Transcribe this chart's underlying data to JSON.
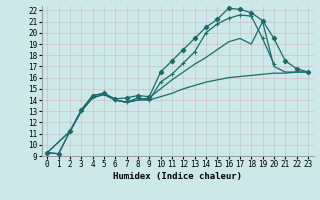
{
  "xlabel": "Humidex (Indice chaleur)",
  "background_color": "#cce8e8",
  "grid_color": "#aacccc",
  "line_color": "#1a6b6b",
  "xlim": [
    -0.5,
    23.5
  ],
  "ylim": [
    9,
    22.4
  ],
  "xticks": [
    0,
    1,
    2,
    3,
    4,
    5,
    6,
    7,
    8,
    9,
    10,
    11,
    12,
    13,
    14,
    15,
    16,
    17,
    18,
    19,
    20,
    21,
    22,
    23
  ],
  "yticks": [
    9,
    10,
    11,
    12,
    13,
    14,
    15,
    16,
    17,
    18,
    19,
    20,
    21,
    22
  ],
  "line1_x": [
    0,
    1,
    2,
    3,
    4,
    5,
    6,
    7,
    8,
    9,
    10,
    11,
    12,
    13,
    14,
    15,
    16,
    17,
    18,
    19,
    20,
    21,
    22,
    23
  ],
  "line1_y": [
    9.3,
    9.2,
    11.2,
    13.1,
    14.4,
    14.6,
    14.1,
    14.2,
    14.4,
    14.3,
    16.5,
    17.5,
    18.5,
    19.5,
    20.5,
    21.2,
    22.2,
    22.1,
    21.8,
    21.1,
    19.5,
    17.5,
    16.8,
    16.5
  ],
  "line2_x": [
    0,
    1,
    2,
    3,
    4,
    5,
    6,
    7,
    8,
    9,
    10,
    11,
    12,
    13,
    14,
    15,
    16,
    17,
    18,
    19,
    20
  ],
  "line2_y": [
    9.3,
    9.2,
    11.2,
    13.1,
    14.4,
    14.6,
    14.0,
    13.8,
    14.2,
    14.0,
    15.6,
    16.3,
    17.3,
    18.3,
    20.0,
    20.8,
    21.3,
    21.6,
    21.5,
    19.5,
    17.2
  ],
  "line3_x": [
    0,
    2,
    3,
    4,
    5,
    6,
    7,
    8,
    9,
    10,
    11,
    12,
    13,
    14,
    15,
    16,
    17,
    18,
    19,
    20,
    21,
    22,
    23
  ],
  "line3_y": [
    9.3,
    11.2,
    13.0,
    14.2,
    14.5,
    14.0,
    13.8,
    14.0,
    14.0,
    14.3,
    14.6,
    15.0,
    15.3,
    15.6,
    15.8,
    16.0,
    16.1,
    16.2,
    16.3,
    16.4,
    16.4,
    16.5,
    16.5
  ],
  "line4_x": [
    0,
    2,
    3,
    4,
    5,
    6,
    7,
    8,
    9,
    10,
    11,
    12,
    13,
    14,
    15,
    16,
    17,
    18,
    19,
    20,
    21,
    22,
    23
  ],
  "line4_y": [
    9.3,
    11.2,
    13.0,
    14.2,
    14.5,
    14.0,
    13.8,
    14.0,
    14.2,
    15.0,
    15.8,
    16.5,
    17.2,
    17.8,
    18.5,
    19.2,
    19.5,
    19.0,
    21.0,
    17.0,
    16.5,
    16.5,
    16.5
  ]
}
